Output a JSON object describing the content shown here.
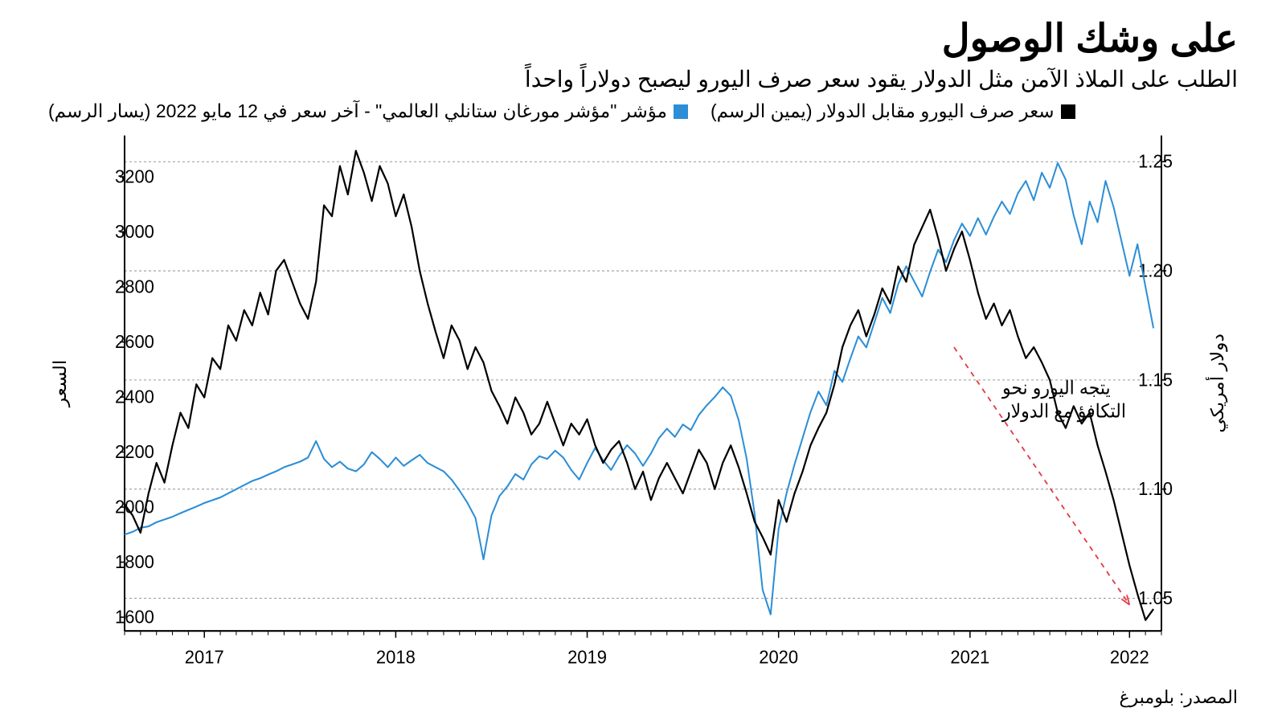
{
  "title": "على وشك الوصول",
  "subtitle": "الطلب على الملاذ الآمن مثل الدولار يقود سعر صرف اليورو ليصبح دولاراً واحداً",
  "legend": {
    "series1": {
      "label": "سعر صرف اليورو مقابل الدولار (يمين الرسم)",
      "color": "#000000"
    },
    "series2": {
      "label": "مؤشر \"مؤشر مورغان ستانلي العالمي\" - آخر سعر في 12 مايو 2022 (يسار الرسم)",
      "color": "#2c8ed6"
    }
  },
  "source": "المصدر: بلومبرغ",
  "chart": {
    "type": "dual-axis-line",
    "background_color": "#ffffff",
    "grid_color": "#999999",
    "axis_color": "#000000",
    "axis_font_size": 22,
    "line_width_black": 2.2,
    "line_width_blue": 2.0,
    "left_axis": {
      "label": "السعر",
      "min": 1550,
      "max": 3350,
      "ticks": [
        1600,
        1800,
        2000,
        2200,
        2400,
        2600,
        2800,
        3000,
        3200
      ],
      "gridlines_at": [
        2100,
        2475,
        2850,
        3250
      ]
    },
    "right_axis": {
      "label": "دولار أمريكي",
      "min": 1.035,
      "max": 1.262,
      "ticks": [
        1.05,
        1.1,
        1.15,
        1.2,
        1.25
      ],
      "tick_labels": [
        "1.05",
        "1.10",
        "1.15",
        "1.20",
        "1.25"
      ]
    },
    "x_axis": {
      "min": 0,
      "max": 65,
      "year_ticks": {
        "2017": 5,
        "2018": 17,
        "2019": 29,
        "2020": 41,
        "2021": 53,
        "2022": 63
      }
    },
    "annotation": {
      "text_line1": "يتجه اليورو نحو",
      "text_line2": "التكافؤ مع الدولار",
      "arrow_color": "#e63946",
      "arrow_dash": "6,6",
      "arrow_from": [
        52,
        1.165
      ],
      "arrow_to": [
        63,
        1.047
      ]
    },
    "series_black_eurusd": [
      [
        0,
        1.093
      ],
      [
        0.5,
        1.088
      ],
      [
        1,
        1.08
      ],
      [
        1.5,
        1.098
      ],
      [
        2,
        1.112
      ],
      [
        2.5,
        1.103
      ],
      [
        3,
        1.12
      ],
      [
        3.5,
        1.135
      ],
      [
        4,
        1.128
      ],
      [
        4.5,
        1.148
      ],
      [
        5,
        1.142
      ],
      [
        5.5,
        1.16
      ],
      [
        6,
        1.155
      ],
      [
        6.5,
        1.175
      ],
      [
        7,
        1.168
      ],
      [
        7.5,
        1.182
      ],
      [
        8,
        1.175
      ],
      [
        8.5,
        1.19
      ],
      [
        9,
        1.18
      ],
      [
        9.5,
        1.2
      ],
      [
        10,
        1.205
      ],
      [
        10.5,
        1.195
      ],
      [
        11,
        1.185
      ],
      [
        11.5,
        1.178
      ],
      [
        12,
        1.195
      ],
      [
        12.5,
        1.23
      ],
      [
        13,
        1.225
      ],
      [
        13.5,
        1.248
      ],
      [
        14,
        1.235
      ],
      [
        14.5,
        1.255
      ],
      [
        15,
        1.245
      ],
      [
        15.5,
        1.232
      ],
      [
        16,
        1.248
      ],
      [
        16.5,
        1.24
      ],
      [
        17,
        1.225
      ],
      [
        17.5,
        1.235
      ],
      [
        18,
        1.22
      ],
      [
        18.5,
        1.2
      ],
      [
        19,
        1.185
      ],
      [
        19.5,
        1.172
      ],
      [
        20,
        1.16
      ],
      [
        20.5,
        1.175
      ],
      [
        21,
        1.168
      ],
      [
        21.5,
        1.155
      ],
      [
        22,
        1.165
      ],
      [
        22.5,
        1.158
      ],
      [
        23,
        1.145
      ],
      [
        23.5,
        1.138
      ],
      [
        24,
        1.13
      ],
      [
        24.5,
        1.142
      ],
      [
        25,
        1.135
      ],
      [
        25.5,
        1.125
      ],
      [
        26,
        1.13
      ],
      [
        26.5,
        1.14
      ],
      [
        27,
        1.13
      ],
      [
        27.5,
        1.12
      ],
      [
        28,
        1.13
      ],
      [
        28.5,
        1.125
      ],
      [
        29,
        1.132
      ],
      [
        29.5,
        1.12
      ],
      [
        30,
        1.112
      ],
      [
        30.5,
        1.118
      ],
      [
        31,
        1.122
      ],
      [
        31.5,
        1.112
      ],
      [
        32,
        1.1
      ],
      [
        32.5,
        1.108
      ],
      [
        33,
        1.095
      ],
      [
        33.5,
        1.105
      ],
      [
        34,
        1.112
      ],
      [
        34.5,
        1.105
      ],
      [
        35,
        1.098
      ],
      [
        35.5,
        1.108
      ],
      [
        36,
        1.118
      ],
      [
        36.5,
        1.112
      ],
      [
        37,
        1.1
      ],
      [
        37.5,
        1.112
      ],
      [
        38,
        1.12
      ],
      [
        38.5,
        1.11
      ],
      [
        39,
        1.098
      ],
      [
        39.5,
        1.085
      ],
      [
        40,
        1.078
      ],
      [
        40.5,
        1.07
      ],
      [
        41,
        1.095
      ],
      [
        41.5,
        1.085
      ],
      [
        42,
        1.098
      ],
      [
        42.5,
        1.108
      ],
      [
        43,
        1.12
      ],
      [
        43.5,
        1.128
      ],
      [
        44,
        1.135
      ],
      [
        44.5,
        1.148
      ],
      [
        45,
        1.165
      ],
      [
        45.5,
        1.175
      ],
      [
        46,
        1.182
      ],
      [
        46.5,
        1.17
      ],
      [
        47,
        1.18
      ],
      [
        47.5,
        1.192
      ],
      [
        48,
        1.185
      ],
      [
        48.5,
        1.202
      ],
      [
        49,
        1.195
      ],
      [
        49.5,
        1.212
      ],
      [
        50,
        1.22
      ],
      [
        50.5,
        1.228
      ],
      [
        51,
        1.215
      ],
      [
        51.5,
        1.2
      ],
      [
        52,
        1.21
      ],
      [
        52.5,
        1.218
      ],
      [
        53,
        1.205
      ],
      [
        53.5,
        1.19
      ],
      [
        54,
        1.178
      ],
      [
        54.5,
        1.185
      ],
      [
        55,
        1.175
      ],
      [
        55.5,
        1.182
      ],
      [
        56,
        1.17
      ],
      [
        56.5,
        1.16
      ],
      [
        57,
        1.165
      ],
      [
        57.5,
        1.158
      ],
      [
        58,
        1.15
      ],
      [
        58.5,
        1.135
      ],
      [
        59,
        1.128
      ],
      [
        59.5,
        1.138
      ],
      [
        60,
        1.13
      ],
      [
        60.5,
        1.135
      ],
      [
        61,
        1.12
      ],
      [
        61.5,
        1.108
      ],
      [
        62,
        1.095
      ],
      [
        62.5,
        1.08
      ],
      [
        63,
        1.065
      ],
      [
        63.5,
        1.052
      ],
      [
        64,
        1.04
      ],
      [
        64.5,
        1.045
      ]
    ],
    "series_blue_msci": [
      [
        0,
        1900
      ],
      [
        0.5,
        1910
      ],
      [
        1,
        1925
      ],
      [
        1.5,
        1930
      ],
      [
        2,
        1945
      ],
      [
        2.5,
        1955
      ],
      [
        3,
        1965
      ],
      [
        3.5,
        1978
      ],
      [
        4,
        1990
      ],
      [
        4.5,
        2002
      ],
      [
        5,
        2015
      ],
      [
        5.5,
        2025
      ],
      [
        6,
        2035
      ],
      [
        6.5,
        2050
      ],
      [
        7,
        2065
      ],
      [
        7.5,
        2080
      ],
      [
        8,
        2095
      ],
      [
        8.5,
        2105
      ],
      [
        9,
        2118
      ],
      [
        9.5,
        2130
      ],
      [
        10,
        2145
      ],
      [
        10.5,
        2155
      ],
      [
        11,
        2165
      ],
      [
        11.5,
        2180
      ],
      [
        12,
        2240
      ],
      [
        12.5,
        2175
      ],
      [
        13,
        2145
      ],
      [
        13.5,
        2165
      ],
      [
        14,
        2140
      ],
      [
        14.5,
        2130
      ],
      [
        15,
        2155
      ],
      [
        15.5,
        2200
      ],
      [
        16,
        2175
      ],
      [
        16.5,
        2145
      ],
      [
        17,
        2180
      ],
      [
        17.5,
        2150
      ],
      [
        18,
        2170
      ],
      [
        18.5,
        2190
      ],
      [
        19,
        2160
      ],
      [
        19.5,
        2145
      ],
      [
        20,
        2130
      ],
      [
        20.5,
        2100
      ],
      [
        21,
        2060
      ],
      [
        21.5,
        2015
      ],
      [
        22,
        1960
      ],
      [
        22.5,
        1810
      ],
      [
        23,
        1970
      ],
      [
        23.5,
        2040
      ],
      [
        24,
        2075
      ],
      [
        24.5,
        2120
      ],
      [
        25,
        2100
      ],
      [
        25.5,
        2155
      ],
      [
        26,
        2185
      ],
      [
        26.5,
        2175
      ],
      [
        27,
        2205
      ],
      [
        27.5,
        2180
      ],
      [
        28,
        2135
      ],
      [
        28.5,
        2100
      ],
      [
        29,
        2160
      ],
      [
        29.5,
        2215
      ],
      [
        30,
        2170
      ],
      [
        30.5,
        2135
      ],
      [
        31,
        2185
      ],
      [
        31.5,
        2225
      ],
      [
        32,
        2195
      ],
      [
        32.5,
        2150
      ],
      [
        33,
        2195
      ],
      [
        33.5,
        2250
      ],
      [
        34,
        2285
      ],
      [
        34.5,
        2255
      ],
      [
        35,
        2300
      ],
      [
        35.5,
        2280
      ],
      [
        36,
        2335
      ],
      [
        36.5,
        2370
      ],
      [
        37,
        2400
      ],
      [
        37.5,
        2435
      ],
      [
        38,
        2405
      ],
      [
        38.5,
        2315
      ],
      [
        39,
        2175
      ],
      [
        39.5,
        1975
      ],
      [
        40,
        1700
      ],
      [
        40.5,
        1610
      ],
      [
        41,
        1920
      ],
      [
        41.5,
        2050
      ],
      [
        42,
        2155
      ],
      [
        42.5,
        2250
      ],
      [
        43,
        2345
      ],
      [
        43.5,
        2420
      ],
      [
        44,
        2370
      ],
      [
        44.5,
        2495
      ],
      [
        45,
        2455
      ],
      [
        45.5,
        2540
      ],
      [
        46,
        2620
      ],
      [
        46.5,
        2580
      ],
      [
        47,
        2670
      ],
      [
        47.5,
        2760
      ],
      [
        48,
        2705
      ],
      [
        48.5,
        2810
      ],
      [
        49,
        2875
      ],
      [
        49.5,
        2820
      ],
      [
        50,
        2765
      ],
      [
        50.5,
        2855
      ],
      [
        51,
        2935
      ],
      [
        51.5,
        2890
      ],
      [
        52,
        2970
      ],
      [
        52.5,
        3030
      ],
      [
        53,
        2985
      ],
      [
        53.5,
        3050
      ],
      [
        54,
        2990
      ],
      [
        54.5,
        3055
      ],
      [
        55,
        3110
      ],
      [
        55.5,
        3065
      ],
      [
        56,
        3140
      ],
      [
        56.5,
        3185
      ],
      [
        57,
        3115
      ],
      [
        57.5,
        3215
      ],
      [
        58,
        3160
      ],
      [
        58.5,
        3250
      ],
      [
        59,
        3190
      ],
      [
        59.5,
        3060
      ],
      [
        60,
        2955
      ],
      [
        60.5,
        3110
      ],
      [
        61,
        3035
      ],
      [
        61.5,
        3185
      ],
      [
        62,
        3090
      ],
      [
        62.5,
        2965
      ],
      [
        63,
        2840
      ],
      [
        63.5,
        2955
      ],
      [
        64,
        2800
      ],
      [
        64.5,
        2650
      ]
    ]
  }
}
